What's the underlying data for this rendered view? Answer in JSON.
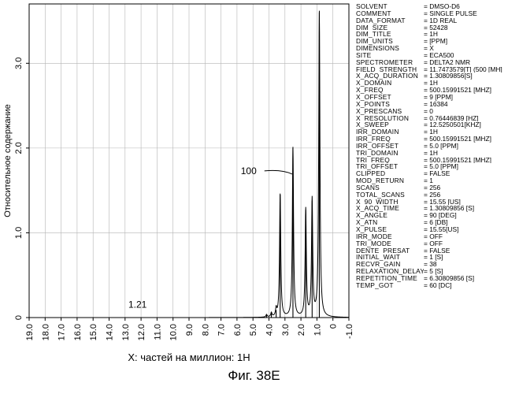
{
  "caption": "Фиг. 38E",
  "chart_data": {
    "type": "line",
    "xlabel": "X: частей на миллион: 1H",
    "ylabel": "Относительное содержание",
    "x_ticks": [
      "19.0",
      "18.0",
      "17.0",
      "16.0",
      "15.0",
      "14.0",
      "13.0",
      "12.0",
      "11.0",
      "10.0",
      "9.0",
      "8.0",
      "7.0",
      "6.0",
      "5.0",
      "4.0",
      "3.0",
      "2.0",
      "1.0",
      "0",
      "-1.0"
    ],
    "y_ticks": [
      "0",
      "1.0",
      "2.0",
      "3.0"
    ],
    "xlim": [
      19.0,
      -1.0
    ],
    "ylim": [
      0,
      3.7
    ],
    "grid": true,
    "series": [
      {
        "peaks": [
          {
            "x": 4.15,
            "y": 0.03
          },
          {
            "x": 3.85,
            "y": 0.05
          },
          {
            "x": 3.55,
            "y": 0.09
          },
          {
            "x": 3.3,
            "y": 1.45
          },
          {
            "x": 2.5,
            "y": 2.0
          },
          {
            "x": 1.7,
            "y": 1.27
          },
          {
            "x": 1.3,
            "y": 1.38
          },
          {
            "x": 0.85,
            "y": 3.6
          }
        ]
      }
    ],
    "annotations": [
      {
        "text": "100",
        "x": 3.2,
        "y": 1.73
      },
      {
        "text": "1.21",
        "x": 12.4,
        "y": 0.08
      }
    ]
  },
  "parameters": [
    {
      "key": "SOLVENT",
      "value": "= DMSO-D6"
    },
    {
      "key": "COMMENT",
      "value": "= SINGLE PULSE"
    },
    {
      "key": "DATA_FORMAT",
      "value": "= 1D REAL"
    },
    {
      "key": "DIM_SIZE",
      "value": "= 52428"
    },
    {
      "key": "DIM_TITLE",
      "value": "= 1H"
    },
    {
      "key": "DIM_UNITS",
      "value": "= [PPM]"
    },
    {
      "key": "DIMENSIONS",
      "value": "= X"
    },
    {
      "key": "SITE",
      "value": "= ECA500"
    },
    {
      "key": "SPECTROMETER",
      "value": "= DELTA2 NMR"
    },
    {
      "key": "FIELD_STRENGTH",
      "value": "= 11.7473579[T] (500 [MH]"
    },
    {
      "key": "X_ACQ_DURATION",
      "value": "= 1.30809856[S]"
    },
    {
      "key": "X_DOMAIN",
      "value": "= 1H"
    },
    {
      "key": "X_FREQ",
      "value": "= 500.15991521 [MHZ]"
    },
    {
      "key": "X_OFFSET",
      "value": "= 9 [PPM]"
    },
    {
      "key": "X_POINTS",
      "value": "= 16384"
    },
    {
      "key": "X_PRESCANS",
      "value": "= 0"
    },
    {
      "key": "X_RESOLUTION",
      "value": "= 0.76446839 [HZ]"
    },
    {
      "key": "X_SWEEP",
      "value": "= 12.5250501[KHZ]"
    },
    {
      "key": "IRR_DOMAIN",
      "value": "= 1H"
    },
    {
      "key": "IRR_FREQ",
      "value": "= 500.15991521 [MHZ]"
    },
    {
      "key": "IRR_OFFSET",
      "value": "= 5.0 [PPM]"
    },
    {
      "key": "TRI_DOMAIN",
      "value": "= 1H"
    },
    {
      "key": "TRI_FREQ",
      "value": "= 500.15991521 [MHZ]"
    },
    {
      "key": "TRI_OFFSET",
      "value": "= 5.0 [PPM]"
    },
    {
      "key": "CLIPPED",
      "value": "= FALSE"
    },
    {
      "key": "MOD_RETURN",
      "value": "= 1"
    },
    {
      "key": "SCANS",
      "value": "= 256"
    },
    {
      "key": "TOTAL_SCANS",
      "value": "= 256"
    },
    {
      "key": "X_90_WIDTH",
      "value": "= 15.55 [US]"
    },
    {
      "key": "X_ACQ_TIME",
      "value": "= 1.30809856 [S]"
    },
    {
      "key": "X_ANGLE",
      "value": "= 90 [DEG]"
    },
    {
      "key": "X_ATN",
      "value": "= 6 [DB]"
    },
    {
      "key": "X_PULSE",
      "value": "= 15.55[US]"
    },
    {
      "key": "IRR_MODE",
      "value": "= OFF"
    },
    {
      "key": "TRI_MODE",
      "value": "= OFF"
    },
    {
      "key": "DENTE_PRESAT",
      "value": "= FALSE"
    },
    {
      "key": "INITIAL_WAIT",
      "value": "= 1 [S]"
    },
    {
      "key": "RECVR_GAIN",
      "value": "= 38"
    },
    {
      "key": "RELAXATION_DELAY",
      "value": "= 5 [S]"
    },
    {
      "key": "REPETITION_TIME",
      "value": "= 6.30809856 [S]"
    },
    {
      "key": "TEMP_GOT",
      "value": "= 60 [DC]"
    }
  ]
}
